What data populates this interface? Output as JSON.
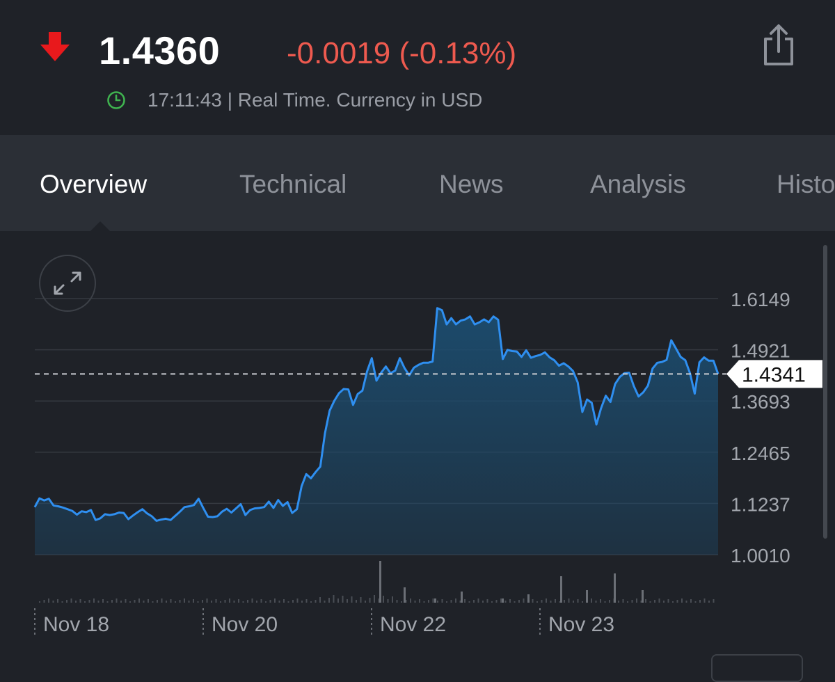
{
  "header": {
    "price": "1.4360",
    "change": "-0.0019 (-0.13%)",
    "time_status": "17:11:43 | Real Time. Currency in USD",
    "colors": {
      "negative": "#ee5a4f",
      "down_arrow": "#e8191c",
      "clock": "#3fb34f"
    },
    "icons": {
      "direction": "down-arrow-icon",
      "clock": "clock-icon",
      "share": "share-icon"
    }
  },
  "tabs": [
    {
      "label": "Overview",
      "active": true
    },
    {
      "label": "Technical",
      "active": false
    },
    {
      "label": "News",
      "active": false
    },
    {
      "label": "Analysis",
      "active": false
    },
    {
      "label": "Historical Data",
      "active": false
    }
  ],
  "chart_data": {
    "type": "area",
    "ylim": [
      1.001,
      1.6149
    ],
    "y_ticks": [
      "1.6149",
      "1.4921",
      "1.3693",
      "1.2465",
      "1.1237",
      "1.0010"
    ],
    "x_labels": [
      "Nov 18",
      "Nov 20",
      "Nov 22",
      "Nov 23"
    ],
    "current_value": "1.4341",
    "current_value_num": 1.4341,
    "grid": true,
    "colors": {
      "line": "#2f8ff0",
      "fill": "#1c4d70",
      "grid": "#353940",
      "label": "#a2a6ad"
    },
    "series": [
      {
        "values": [
          1.115,
          1.136,
          1.131,
          1.135,
          1.119,
          1.117,
          1.114,
          1.11,
          1.106,
          1.097,
          1.105,
          1.103,
          1.108,
          1.084,
          1.088,
          1.098,
          1.096,
          1.098,
          1.102,
          1.101,
          1.086,
          1.095,
          1.103,
          1.11,
          1.1,
          1.093,
          1.082,
          1.085,
          1.087,
          1.084,
          1.094,
          1.104,
          1.115,
          1.117,
          1.12,
          1.135,
          1.113,
          1.092,
          1.091,
          1.093,
          1.104,
          1.111,
          1.102,
          1.112,
          1.122,
          1.096,
          1.108,
          1.112,
          1.113,
          1.115,
          1.128,
          1.113,
          1.132,
          1.118,
          1.127,
          1.101,
          1.11,
          1.165,
          1.194,
          1.184,
          1.199,
          1.212,
          1.292,
          1.346,
          1.37,
          1.388,
          1.398,
          1.397,
          1.36,
          1.386,
          1.394,
          1.44,
          1.472,
          1.418,
          1.437,
          1.452,
          1.436,
          1.442,
          1.472,
          1.448,
          1.431,
          1.449,
          1.456,
          1.461,
          1.461,
          1.464,
          1.592,
          1.587,
          1.553,
          1.568,
          1.553,
          1.562,
          1.565,
          1.572,
          1.553,
          1.558,
          1.565,
          1.558,
          1.572,
          1.564,
          1.47,
          1.492,
          1.489,
          1.488,
          1.475,
          1.491,
          1.473,
          1.477,
          1.48,
          1.486,
          1.474,
          1.467,
          1.454,
          1.46,
          1.452,
          1.441,
          1.414,
          1.343,
          1.373,
          1.365,
          1.313,
          1.352,
          1.382,
          1.367,
          1.41,
          1.427,
          1.436,
          1.437,
          1.405,
          1.38,
          1.39,
          1.406,
          1.447,
          1.461,
          1.463,
          1.468,
          1.515,
          1.495,
          1.475,
          1.467,
          1.436,
          1.387,
          1.462,
          1.474,
          1.466,
          1.466,
          1.4341
        ]
      }
    ]
  }
}
